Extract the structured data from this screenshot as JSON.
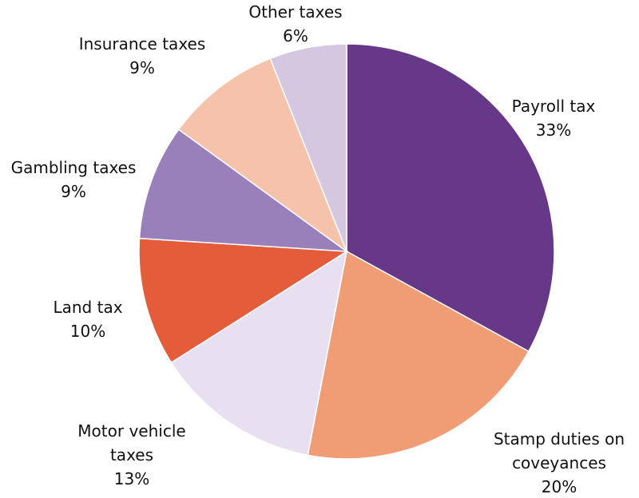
{
  "chart_data": {
    "type": "pie",
    "categories": [
      "Payroll tax",
      "Stamp duties on coveyances",
      "Motor vehicle taxes",
      "Land tax",
      "Gambling taxes",
      "Insurance taxes",
      "Other taxes"
    ],
    "values": [
      33,
      20,
      13,
      10,
      9,
      9,
      6
    ],
    "value_labels": [
      "33%",
      "20%",
      "13%",
      "10%",
      "9%",
      "9%",
      "6%"
    ],
    "colors": [
      "#673888",
      "#f09c74",
      "#e8e0f0",
      "#e55c3a",
      "#9a80bb",
      "#f5c3ab",
      "#d5c7e0"
    ]
  }
}
